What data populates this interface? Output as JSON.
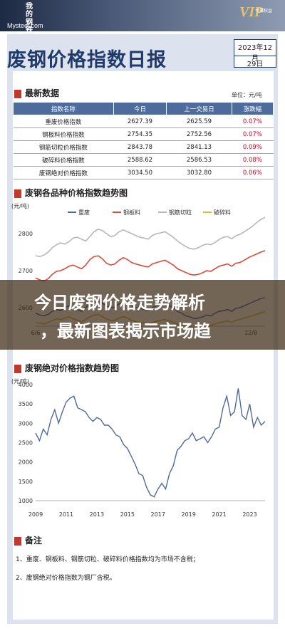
{
  "header": {
    "logo_text": "我的钢铁",
    "logo_url": "Mysteel.com",
    "vip_label": "VIP",
    "vip_sub": "专属权益"
  },
  "report": {
    "title": "废钢价格指数日报",
    "date_month": "2023年12月",
    "date_day": "29日"
  },
  "latest": {
    "section_title": "最新数据",
    "unit": "单位：元/吨",
    "columns": [
      "指数名称",
      "今日",
      "上一交易日",
      "涨跌幅"
    ],
    "rows": [
      [
        "重废价格指数",
        "2627.39",
        "2625.59",
        "0.07%"
      ],
      [
        "钢板料价格指数",
        "2754.35",
        "2752.56",
        "0.07%"
      ],
      [
        "钢筋切粒价格指数",
        "2843.78",
        "2841.13",
        "0.09%"
      ],
      [
        "破碎料价格指数",
        "2588.62",
        "2586.53",
        "0.08%"
      ],
      [
        "废钢绝对价格指数",
        "3034.50",
        "3032.80",
        "0.06%"
      ]
    ]
  },
  "banner": {
    "line1": "今日废钢价格走势解析",
    "line2": "，最新图表揭示市场趋"
  },
  "notes": {
    "section_title": "备注",
    "items": [
      "1、重废、钢板料、钢筋切粒、破碎料价格指数均为市场不含税；",
      "2、废钢绝对价格指数为钢厂含税。"
    ]
  },
  "colors": {
    "series_blue": "#4a6ab0",
    "series_red": "#d94b3b",
    "series_gray": "#b7b7b7",
    "series_gold": "#e2b43a",
    "absolute_line": "#4f6a9a"
  },
  "chart_data": [
    {
      "type": "line",
      "title": "废钢各品种价格指数趋势图",
      "ylabel": "(元/吨)",
      "ylim": [
        2550,
        2850
      ],
      "yticks": [
        2600,
        2700,
        2800
      ],
      "xticks": [
        "6/6",
        "12/8"
      ],
      "x_count": 56,
      "series": [
        {
          "name": "重废",
          "values": [
            2585,
            2580,
            2578,
            2582,
            2590,
            2595,
            2592,
            2600,
            2605,
            2598,
            2595,
            2590,
            2600,
            2610,
            2615,
            2618,
            2612,
            2605,
            2600,
            2602,
            2610,
            2615,
            2612,
            2605,
            2600,
            2598,
            2595,
            2592,
            2600,
            2605,
            2608,
            2610,
            2605,
            2600,
            2590,
            2585,
            2578,
            2575,
            2570,
            2572,
            2575,
            2580,
            2578,
            2585,
            2590,
            2592,
            2595,
            2590,
            2598,
            2600,
            2605,
            2610,
            2615,
            2620,
            2625,
            2627
          ]
        },
        {
          "name": "钢板料",
          "values": [
            2680,
            2675,
            2672,
            2678,
            2690,
            2698,
            2700,
            2705,
            2712,
            2715,
            2710,
            2705,
            2715,
            2730,
            2738,
            2740,
            2732,
            2720,
            2715,
            2718,
            2728,
            2735,
            2730,
            2722,
            2718,
            2715,
            2712,
            2710,
            2718,
            2722,
            2725,
            2728,
            2722,
            2715,
            2705,
            2700,
            2695,
            2690,
            2688,
            2690,
            2694,
            2700,
            2698,
            2705,
            2712,
            2715,
            2718,
            2712,
            2720,
            2722,
            2728,
            2735,
            2740,
            2745,
            2750,
            2754
          ]
        },
        {
          "name": "钢筋切粒",
          "values": [
            2740,
            2738,
            2742,
            2750,
            2762,
            2770,
            2775,
            2772,
            2778,
            2788,
            2790,
            2785,
            2780,
            2792,
            2805,
            2812,
            2808,
            2800,
            2792,
            2795,
            2805,
            2810,
            2805,
            2800,
            2795,
            2790,
            2788,
            2785,
            2795,
            2800,
            2802,
            2805,
            2798,
            2790,
            2780,
            2772,
            2765,
            2760,
            2758,
            2762,
            2768,
            2772,
            2770,
            2776,
            2784,
            2790,
            2792,
            2786,
            2794,
            2798,
            2805,
            2812,
            2820,
            2830,
            2838,
            2844
          ]
        },
        {
          "name": "破碎料",
          "values": [
            2560,
            2558,
            2556,
            2560,
            2565,
            2570,
            2568,
            2572,
            2575,
            2570,
            2566,
            2562,
            2568,
            2575,
            2580,
            2582,
            2576,
            2570,
            2565,
            2566,
            2572,
            2576,
            2572,
            2566,
            2562,
            2560,
            2558,
            2555,
            2560,
            2564,
            2566,
            2568,
            2564,
            2560,
            2555,
            2552,
            2550,
            2548,
            2546,
            2548,
            2550,
            2553,
            2552,
            2556,
            2560,
            2562,
            2564,
            2560,
            2566,
            2568,
            2572,
            2575,
            2578,
            2582,
            2586,
            2589
          ]
        }
      ]
    },
    {
      "type": "line",
      "title": "废钢绝对价格指数趋势图",
      "ylabel": "(元/吨)",
      "ylim": [
        1000,
        4000
      ],
      "yticks": [
        1000,
        1500,
        2000,
        2500,
        3000,
        3500,
        4000
      ],
      "xticks": [
        "2009",
        "2011",
        "2013",
        "2015",
        "2017",
        "2019",
        "2021",
        "2023"
      ],
      "x_range": [
        2009,
        2024
      ],
      "series": [
        {
          "name": "废钢绝对价格指数",
          "x": [
            2009.0,
            2009.25,
            2009.5,
            2009.75,
            2010.0,
            2010.25,
            2010.5,
            2010.75,
            2011.0,
            2011.25,
            2011.5,
            2011.75,
            2012.0,
            2012.25,
            2012.5,
            2012.75,
            2013.0,
            2013.25,
            2013.5,
            2013.75,
            2014.0,
            2014.25,
            2014.5,
            2014.75,
            2015.0,
            2015.25,
            2015.5,
            2015.75,
            2016.0,
            2016.25,
            2016.5,
            2016.75,
            2017.0,
            2017.25,
            2017.5,
            2017.75,
            2018.0,
            2018.25,
            2018.5,
            2018.75,
            2019.0,
            2019.25,
            2019.5,
            2019.75,
            2020.0,
            2020.25,
            2020.5,
            2020.75,
            2021.0,
            2021.25,
            2021.5,
            2021.75,
            2022.0,
            2022.25,
            2022.5,
            2022.75,
            2023.0,
            2023.25,
            2023.5,
            2023.75,
            2024.0
          ],
          "values": [
            2750,
            2550,
            2850,
            2700,
            3100,
            3350,
            3000,
            3300,
            3550,
            3650,
            3700,
            3400,
            3350,
            3300,
            3150,
            3050,
            3150,
            3100,
            2950,
            2950,
            2850,
            2700,
            2650,
            2450,
            2350,
            2150,
            1950,
            1700,
            1650,
            1350,
            1150,
            1100,
            1300,
            1450,
            1300,
            1700,
            1900,
            2300,
            2400,
            2550,
            2600,
            2750,
            2550,
            2600,
            2650,
            2500,
            2650,
            2850,
            2900,
            3400,
            3700,
            3200,
            3300,
            3900,
            3200,
            3100,
            3500,
            2900,
            3150,
            2950,
            3050
          ]
        }
      ]
    }
  ]
}
